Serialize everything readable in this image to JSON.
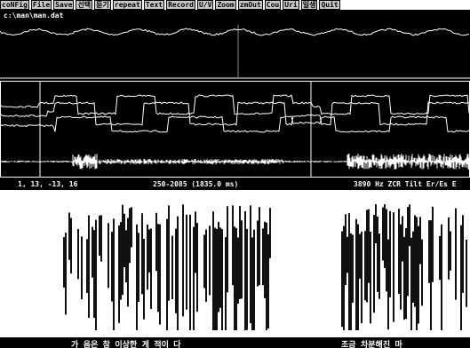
{
  "menu": [
    "coNFig",
    "File",
    "Save",
    "선택",
    "듣기",
    "repeat",
    "Text",
    "Record",
    "U/V",
    "Zoom",
    "zmOut",
    "Cou",
    "Uri",
    "일생",
    "Quit"
  ],
  "file_path": "c:\\man\\man.dat",
  "status": {
    "cursor": "1, 13, -13, 16",
    "range": "250-2085 (1835.0 ms)",
    "info": "3890 Hz  ZCR Tilt Er/Es E"
  },
  "transcript": {
    "left": "가 음은 참 이상한   게 적이 다",
    "right": "조금 차분해진 마"
  }
}
